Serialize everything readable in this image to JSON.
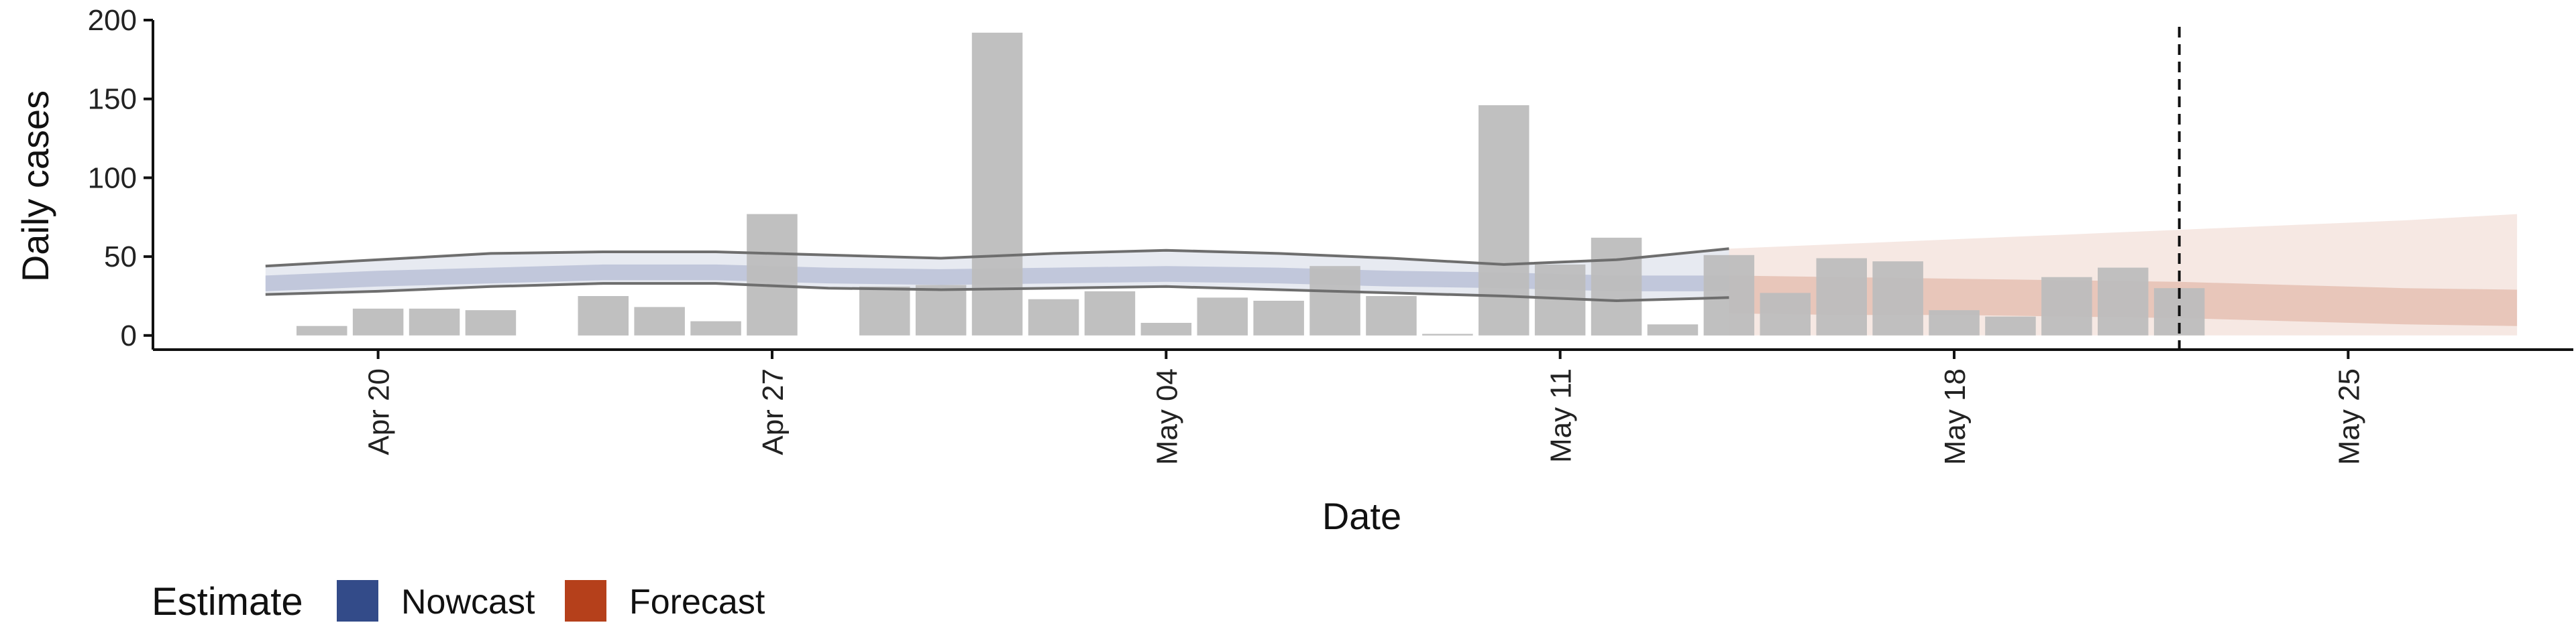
{
  "chart_data": {
    "type": "bar",
    "xlabel": "Date",
    "ylabel": "Daily cases",
    "ylim": [
      -9,
      200
    ],
    "xlim": [
      "2020-04-16",
      "2020-05-29"
    ],
    "y_ticks": [
      0,
      50,
      100,
      150,
      200
    ],
    "x_ticks": [
      {
        "date": "2020-04-20",
        "label": "Apr 20"
      },
      {
        "date": "2020-04-27",
        "label": "Apr 27"
      },
      {
        "date": "2020-05-04",
        "label": "May 04"
      },
      {
        "date": "2020-05-11",
        "label": "May 11"
      },
      {
        "date": "2020-05-18",
        "label": "May 18"
      },
      {
        "date": "2020-05-25",
        "label": "May 25"
      }
    ],
    "bars": {
      "name": "Daily cases",
      "color": "#bdbdbd",
      "dates": [
        "2020-04-19",
        "2020-04-20",
        "2020-04-21",
        "2020-04-22",
        "2020-04-23",
        "2020-04-24",
        "2020-04-25",
        "2020-04-26",
        "2020-04-27",
        "2020-04-28",
        "2020-04-29",
        "2020-04-30",
        "2020-05-01",
        "2020-05-02",
        "2020-05-03",
        "2020-05-04",
        "2020-05-05",
        "2020-05-06",
        "2020-05-07",
        "2020-05-08",
        "2020-05-09",
        "2020-05-10",
        "2020-05-11",
        "2020-05-12",
        "2020-05-13",
        "2020-05-14",
        "2020-05-15",
        "2020-05-16",
        "2020-05-17",
        "2020-05-18",
        "2020-05-19",
        "2020-05-20",
        "2020-05-21",
        "2020-05-22"
      ],
      "values": [
        6,
        17,
        17,
        16,
        0,
        25,
        18,
        9,
        77,
        0,
        31,
        32,
        192,
        23,
        28,
        8,
        24,
        22,
        44,
        25,
        1,
        146,
        45,
        62,
        7,
        51,
        27,
        49,
        47,
        16,
        12,
        37,
        43,
        30
      ]
    },
    "series": [
      {
        "name": "Nowcast",
        "color": "#3c4f8c",
        "dates": [
          "2020-04-18",
          "2020-04-20",
          "2020-04-22",
          "2020-04-24",
          "2020-04-26",
          "2020-04-28",
          "2020-04-30",
          "2020-05-02",
          "2020-05-04",
          "2020-05-06",
          "2020-05-08",
          "2020-05-10",
          "2020-05-12",
          "2020-05-14"
        ],
        "median": [
          33,
          36,
          38,
          40,
          40,
          38,
          37,
          38,
          39,
          38,
          36,
          35,
          33,
          33
        ],
        "lower_inner": [
          28,
          31,
          33,
          35,
          35,
          33,
          32,
          33,
          34,
          33,
          31,
          30,
          28,
          28
        ],
        "upper_inner": [
          38,
          41,
          43,
          45,
          45,
          43,
          42,
          43,
          44,
          43,
          41,
          40,
          38,
          38
        ],
        "lower_outer": [
          26,
          28,
          31,
          33,
          33,
          30,
          29,
          30,
          31,
          29,
          27,
          25,
          22,
          24
        ],
        "upper_outer": [
          44,
          48,
          52,
          53,
          53,
          51,
          49,
          52,
          54,
          52,
          49,
          45,
          48,
          55
        ]
      },
      {
        "name": "Forecast",
        "color": "#b5401b",
        "dates": [
          "2020-05-14",
          "2020-05-16",
          "2020-05-18",
          "2020-05-20",
          "2020-05-22",
          "2020-05-24",
          "2020-05-26",
          "2020-05-28"
        ],
        "lower_inner": [
          14,
          13,
          13,
          12,
          11,
          9,
          7,
          6
        ],
        "upper_inner": [
          38,
          37,
          36,
          35,
          34,
          32,
          30,
          29
        ],
        "lower_outer": [
          0,
          0,
          0,
          0,
          0,
          0,
          0,
          0
        ],
        "upper_outer": [
          55,
          58,
          61,
          64,
          67,
          70,
          73,
          77
        ]
      }
    ],
    "vline": {
      "date": "2020-05-22",
      "style": "dashed"
    },
    "legend": {
      "title": "Estimate",
      "placement": "bottom-left",
      "entries": [
        {
          "label": "Nowcast",
          "color": "#334b89"
        },
        {
          "label": "Forecast",
          "color": "#b5401b"
        }
      ]
    },
    "grid": false
  }
}
